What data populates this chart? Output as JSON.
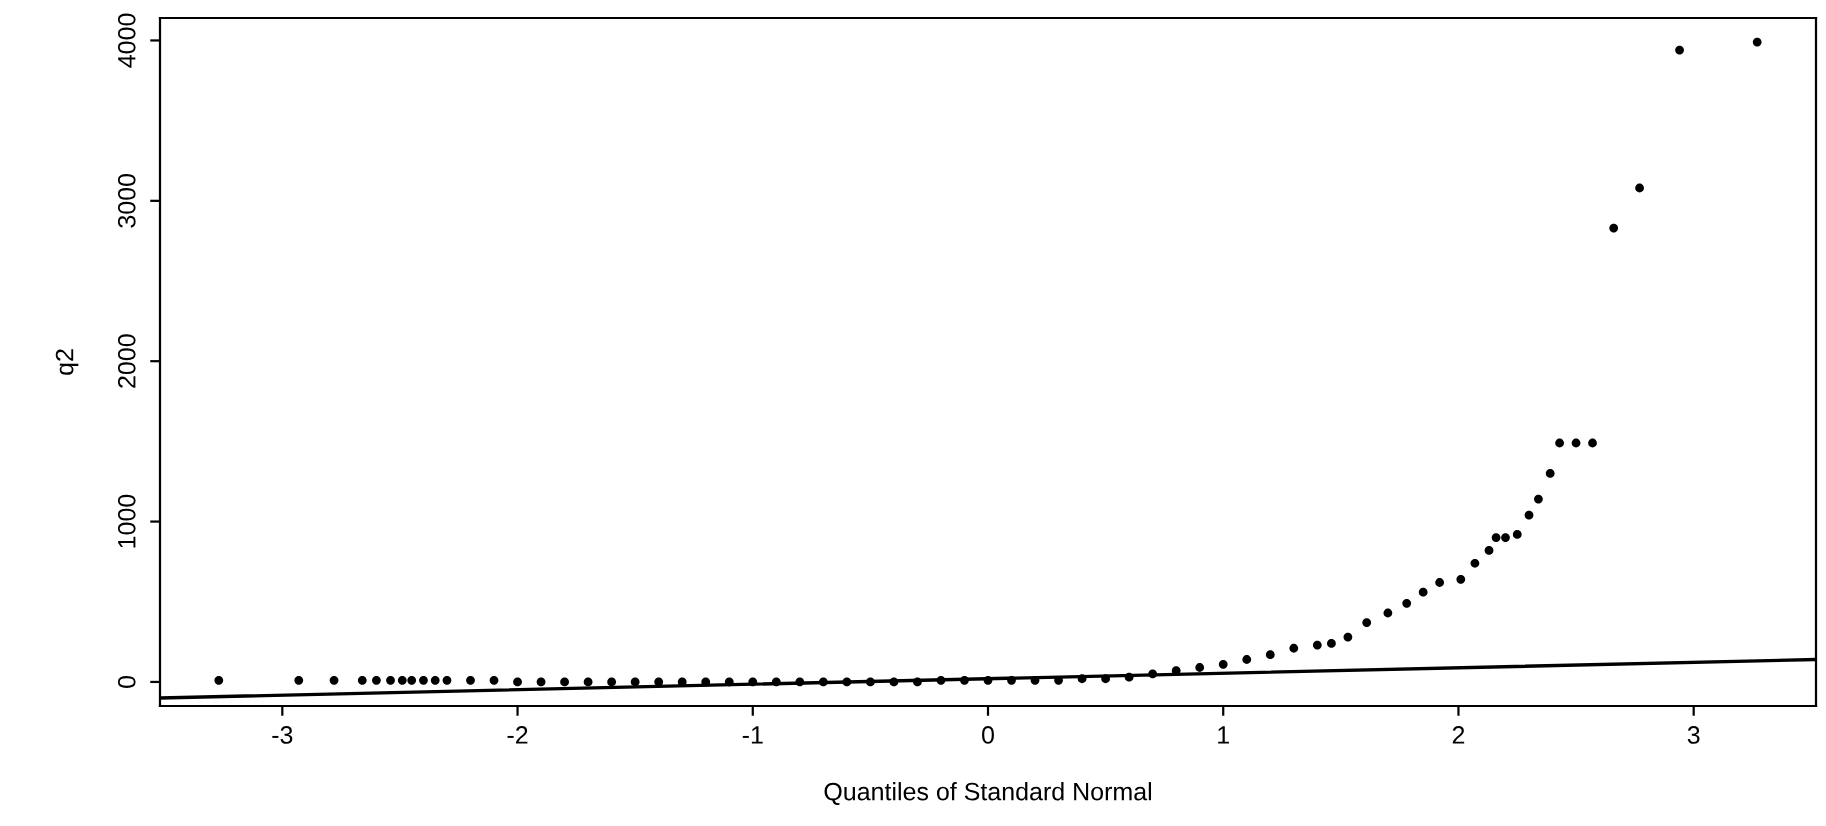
{
  "chart_data": {
    "type": "scatter",
    "xlabel": "Quantiles of Standard Normal",
    "ylabel": "q2",
    "xlim": [
      -3.52,
      3.52
    ],
    "ylim": [
      -150,
      4140
    ],
    "xticks": [
      {
        "value": -3,
        "label": "-3"
      },
      {
        "value": -2,
        "label": "-2"
      },
      {
        "value": -1,
        "label": "-1"
      },
      0,
      1,
      2,
      3
    ],
    "yticks": [
      0,
      1000,
      2000,
      3000,
      4000
    ],
    "series": [
      {
        "color": "#000000",
        "marker": "circle",
        "x": [
          -3.27,
          -2.93,
          -2.78,
          -2.66,
          -2.6,
          -2.54,
          -2.49,
          -2.45,
          -2.4,
          -2.35,
          -2.3,
          -2.2,
          -2.1,
          -2.0,
          -1.9,
          -1.8,
          -1.7,
          -1.6,
          -1.5,
          -1.4,
          -1.3,
          -1.2,
          -1.1,
          -1.0,
          -0.9,
          -0.8,
          -0.7,
          -0.6,
          -0.5,
          -0.4,
          -0.3,
          -0.2,
          -0.1,
          0.0,
          0.1,
          0.2,
          0.3,
          0.4,
          0.5,
          0.6,
          0.7,
          0.8,
          0.9,
          1.0,
          1.1,
          1.2,
          1.3,
          1.4,
          1.46,
          1.53,
          1.61,
          1.7,
          1.78,
          1.85,
          1.92,
          2.01,
          2.07,
          2.13,
          2.16,
          2.2,
          2.25,
          2.3,
          2.34,
          2.39,
          2.43,
          2.5,
          2.57,
          2.66,
          2.77,
          2.94,
          3.27
        ],
        "values": [
          10,
          10,
          10,
          10,
          10,
          10,
          10,
          10,
          10,
          10,
          10,
          10,
          10,
          0,
          0,
          0,
          0,
          0,
          0,
          0,
          0,
          0,
          0,
          0,
          0,
          0,
          0,
          0,
          0,
          0,
          0,
          10,
          10,
          10,
          10,
          10,
          10,
          20,
          20,
          30,
          50,
          70,
          90,
          110,
          140,
          170,
          210,
          230,
          240,
          280,
          370,
          430,
          490,
          560,
          620,
          640,
          740,
          820,
          900,
          900,
          920,
          1040,
          1140,
          1300,
          1490,
          1490,
          1490,
          2830,
          3080,
          3940,
          3990
        ]
      },
      {
        "type": "line",
        "color": "#000000",
        "x": [
          -3.52,
          3.52
        ],
        "values": [
          -100,
          140
        ]
      }
    ]
  }
}
